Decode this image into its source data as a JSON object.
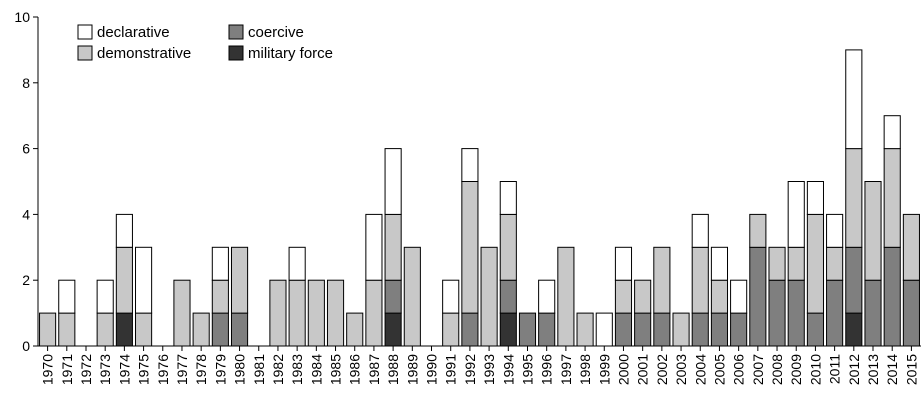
{
  "chart_data": {
    "type": "bar",
    "stacked": true,
    "title": "",
    "xlabel": "",
    "ylabel": "",
    "ylim": [
      0,
      10
    ],
    "yticks": [
      0,
      2,
      4,
      6,
      8,
      10
    ],
    "grid": false,
    "legend_position": "top-left",
    "categories": [
      "1970",
      "1971",
      "1972",
      "1973",
      "1974",
      "1975",
      "1976",
      "1977",
      "1978",
      "1979",
      "1980",
      "1981",
      "1982",
      "1983",
      "1984",
      "1985",
      "1986",
      "1987",
      "1988",
      "1989",
      "1990",
      "1991",
      "1992",
      "1993",
      "1994",
      "1995",
      "1996",
      "1997",
      "1998",
      "1999",
      "2000",
      "2001",
      "2002",
      "2003",
      "2004",
      "2005",
      "2006",
      "2007",
      "2008",
      "2009",
      "2010",
      "2011",
      "2012",
      "2013",
      "2014",
      "2015"
    ],
    "series": [
      {
        "name": "military force",
        "color": "#333333",
        "values": [
          0,
          0,
          0,
          0,
          1,
          0,
          0,
          0,
          0,
          0,
          0,
          0,
          0,
          0,
          0,
          0,
          0,
          0,
          1,
          0,
          0,
          0,
          0,
          0,
          1,
          0,
          0,
          0,
          0,
          0,
          0,
          0,
          0,
          0,
          0,
          0,
          0,
          0,
          0,
          0,
          0,
          0,
          1,
          0,
          0,
          0
        ]
      },
      {
        "name": "coercive",
        "color": "#7f7f7f",
        "values": [
          0,
          0,
          0,
          0,
          0,
          0,
          0,
          0,
          0,
          1,
          1,
          0,
          0,
          0,
          0,
          0,
          0,
          0,
          1,
          0,
          0,
          0,
          1,
          0,
          1,
          1,
          1,
          0,
          0,
          0,
          1,
          1,
          1,
          0,
          1,
          1,
          1,
          3,
          2,
          2,
          1,
          2,
          2,
          2,
          3,
          2
        ]
      },
      {
        "name": "demonstrative",
        "color": "#c8c8c8",
        "values": [
          1,
          1,
          0,
          1,
          2,
          1,
          0,
          2,
          1,
          1,
          2,
          0,
          2,
          2,
          2,
          2,
          1,
          2,
          2,
          3,
          0,
          1,
          4,
          3,
          2,
          0,
          0,
          3,
          1,
          0,
          1,
          1,
          2,
          1,
          2,
          1,
          0,
          1,
          1,
          1,
          3,
          1,
          3,
          3,
          3,
          2
        ]
      },
      {
        "name": "declarative",
        "color": "#ffffff",
        "values": [
          0,
          1,
          0,
          1,
          1,
          2,
          0,
          0,
          0,
          1,
          0,
          0,
          0,
          1,
          0,
          0,
          0,
          2,
          2,
          0,
          0,
          1,
          1,
          0,
          1,
          0,
          1,
          0,
          0,
          1,
          1,
          0,
          0,
          0,
          1,
          1,
          1,
          0,
          0,
          2,
          1,
          1,
          3,
          0,
          1,
          0
        ]
      }
    ],
    "legend_entries": [
      {
        "label": "declarative",
        "color": "#ffffff"
      },
      {
        "label": "coercive",
        "color": "#7f7f7f"
      },
      {
        "label": "demonstrative",
        "color": "#c8c8c8"
      },
      {
        "label": "military force",
        "color": "#333333"
      }
    ]
  }
}
